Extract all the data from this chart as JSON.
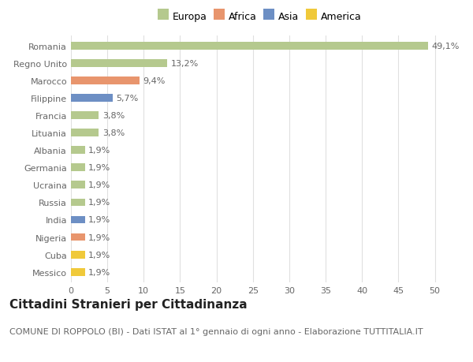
{
  "categories": [
    "Messico",
    "Cuba",
    "Nigeria",
    "India",
    "Russia",
    "Ucraina",
    "Germania",
    "Albania",
    "Lituania",
    "Francia",
    "Filippine",
    "Marocco",
    "Regno Unito",
    "Romania"
  ],
  "values": [
    1.9,
    1.9,
    1.9,
    1.9,
    1.9,
    1.9,
    1.9,
    1.9,
    3.8,
    3.8,
    5.7,
    9.4,
    13.2,
    49.1
  ],
  "colors": [
    "#f0c93a",
    "#f0c93a",
    "#e8956d",
    "#6d8fc4",
    "#b5c98e",
    "#b5c98e",
    "#b5c98e",
    "#b5c98e",
    "#b5c98e",
    "#b5c98e",
    "#6d8fc4",
    "#e8956d",
    "#b5c98e",
    "#b5c98e"
  ],
  "labels": [
    "1,9%",
    "1,9%",
    "1,9%",
    "1,9%",
    "1,9%",
    "1,9%",
    "1,9%",
    "1,9%",
    "3,8%",
    "3,8%",
    "5,7%",
    "9,4%",
    "13,2%",
    "49,1%"
  ],
  "legend_labels": [
    "Europa",
    "Africa",
    "Asia",
    "America"
  ],
  "legend_colors": [
    "#b5c98e",
    "#e8956d",
    "#6d8fc4",
    "#f0c93a"
  ],
  "title": "Cittadini Stranieri per Cittadinanza",
  "subtitle": "COMUNE DI ROPPOLO (BI) - Dati ISTAT al 1° gennaio di ogni anno - Elaborazione TUTTITALIA.IT",
  "xlim": [
    0,
    52
  ],
  "xticks": [
    0,
    5,
    10,
    15,
    20,
    25,
    30,
    35,
    40,
    45,
    50
  ],
  "background_color": "#ffffff",
  "grid_color": "#e0e0e0",
  "bar_height": 0.45,
  "label_fontsize": 8,
  "tick_fontsize": 8,
  "title_fontsize": 11,
  "subtitle_fontsize": 8
}
